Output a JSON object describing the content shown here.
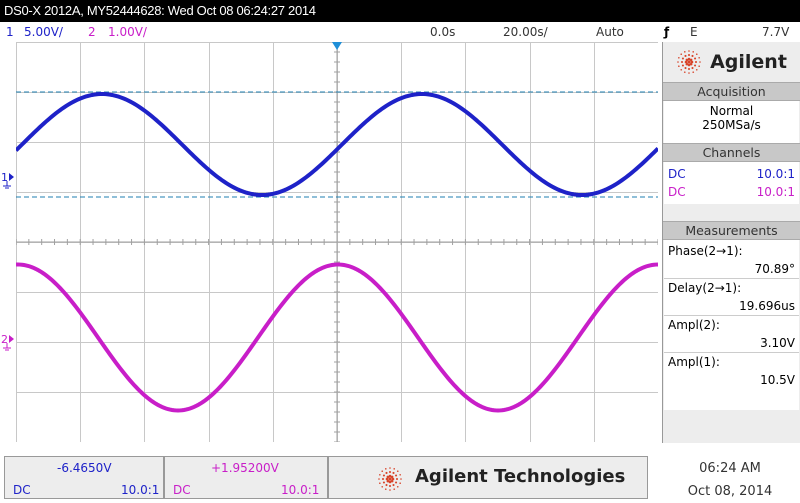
{
  "titlebar": {
    "text": "DS0-X 2012A, MY52444628: Wed Oct 08 06:24:27 2014"
  },
  "status": {
    "ch1_num": "1",
    "ch1_scale": "5.00V/",
    "ch2_num": "2",
    "ch2_scale": "1.00V/",
    "time_offset": "0.0s",
    "timebase": "20.00s/",
    "trigger_mode": "Auto",
    "trigger_source": "E",
    "trigger_level": "7.7V"
  },
  "markers": {
    "ch1": "1",
    "ch2": "2"
  },
  "panel": {
    "brand": "Agilent",
    "acquisition_header": "Acquisition",
    "acq_mode": "Normal",
    "acq_rate": "250MSa/s",
    "channels_header": "Channels",
    "channels": [
      {
        "coupling": "DC",
        "probe": "10.0:1",
        "color": "#1e22c8"
      },
      {
        "coupling": "DC",
        "probe": "10.0:1",
        "color": "#c81ec8"
      }
    ],
    "measurements_header": "Measurements",
    "measurements": [
      {
        "label": "Phase(2→1):",
        "value": "70.89°"
      },
      {
        "label": "Delay(2→1):",
        "value": "19.696us"
      },
      {
        "label": "Ampl(2):",
        "value": "3.10V"
      },
      {
        "label": "Ampl(1):",
        "value": "10.5V"
      }
    ]
  },
  "bottom": {
    "ch1_offset": "-6.4650V",
    "ch1_coupling": "DC",
    "ch1_probe": "10.0:1",
    "ch2_offset": "+1.95200V",
    "ch2_coupling": "DC",
    "ch2_probe": "10.0:1",
    "brand": "Agilent Technologies",
    "time": "06:24 AM",
    "date": "Oct 08, 2014"
  },
  "colors": {
    "ch1": "#1e22c8",
    "ch2": "#c81ec8",
    "grid": "#c8c8c8",
    "cursor": "#1f7fb0"
  }
}
